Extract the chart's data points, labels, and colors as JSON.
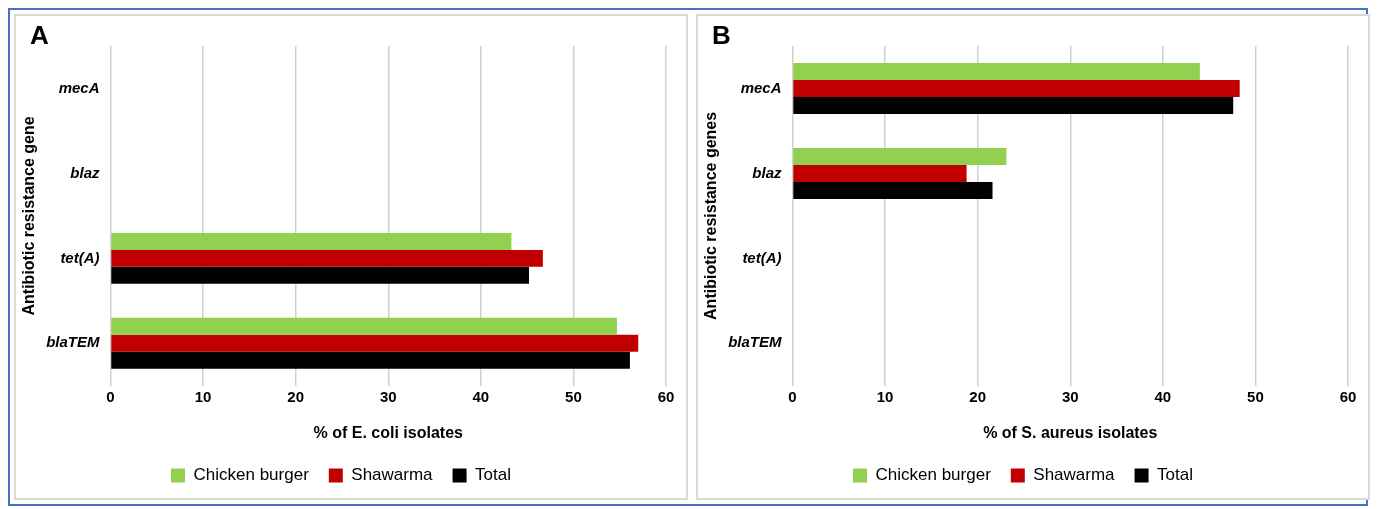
{
  "chart_data": [
    {
      "type": "bar",
      "title": "A",
      "orientation": "horizontal",
      "categories": [
        "mecA",
        "blaz",
        "tet(A)",
        "blaTEM"
      ],
      "xlabel": "% of E. coli isolates",
      "ylabel": "Antibiotic resistance gene",
      "xlim": [
        0,
        60
      ],
      "xticks": [
        0,
        10,
        20,
        30,
        40,
        50,
        60
      ],
      "grid": "x",
      "legend": "bottom",
      "series": [
        {
          "name": "Chicken burger",
          "color": "#92d050",
          "values": [
            0,
            0,
            43.3,
            54.7
          ]
        },
        {
          "name": "Shawarma",
          "color": "#c00000",
          "values": [
            0,
            0,
            46.7,
            57.0
          ]
        },
        {
          "name": "Total",
          "color": "#000000",
          "values": [
            0,
            0,
            45.2,
            56.1
          ]
        }
      ]
    },
    {
      "type": "bar",
      "title": "B",
      "orientation": "horizontal",
      "categories": [
        "mecA",
        "blaz",
        "tet(A)",
        "blaTEM"
      ],
      "xlabel": "% of S. aureus isolates",
      "ylabel": "Antibiotic resistance genes",
      "xlim": [
        0,
        60
      ],
      "xticks": [
        0,
        10,
        20,
        30,
        40,
        50,
        60
      ],
      "grid": "x",
      "legend": "bottom",
      "series": [
        {
          "name": "Chicken burger",
          "color": "#92d050",
          "values": [
            44.0,
            23.1,
            0,
            0
          ]
        },
        {
          "name": "Shawarma",
          "color": "#c00000",
          "values": [
            48.3,
            18.8,
            0,
            0
          ]
        },
        {
          "name": "Total",
          "color": "#000000",
          "values": [
            47.6,
            21.6,
            0,
            0
          ]
        }
      ]
    }
  ]
}
